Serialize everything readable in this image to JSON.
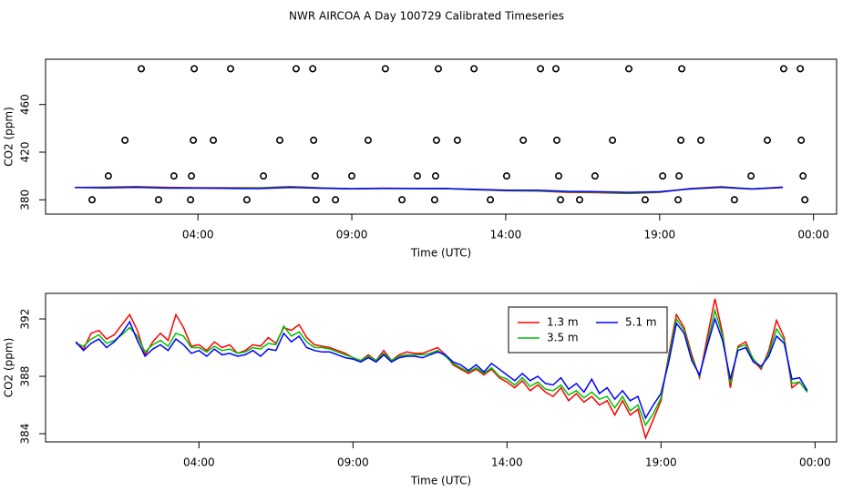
{
  "chart_data": [
    {
      "type": "scatter",
      "title": "NWR AIRCOA A  Day 100729  Calibrated Timeseries",
      "xlabel": "Time (UTC)",
      "ylabel": "CO2 (ppm)",
      "xlim": [
        -0.95,
        24.75
      ],
      "ylim": [
        368,
        498
      ],
      "xticks": [
        {
          "value": 4,
          "label": "04:00"
        },
        {
          "value": 9,
          "label": "09:00"
        },
        {
          "value": 14,
          "label": "14:00"
        },
        {
          "value": 19,
          "label": "19:00"
        },
        {
          "value": 24,
          "label": "00:00"
        }
      ],
      "yticks": [
        380,
        420,
        460
      ],
      "points": {
        "x": [
          0.56,
          2.72,
          3.76,
          5.59,
          7.84,
          8.47,
          10.63,
          11.69,
          13.5,
          15.78,
          16.4,
          18.53,
          19.6,
          21.43,
          23.72,
          1.09,
          3.22,
          3.79,
          6.13,
          7.81,
          9.0,
          11.13,
          11.72,
          14.03,
          15.72,
          16.9,
          19.1,
          19.63,
          21.97,
          23.66,
          1.63,
          4.5,
          3.85,
          6.66,
          7.76,
          9.53,
          11.75,
          12.43,
          14.57,
          15.66,
          17.47,
          19.69,
          20.34,
          22.5,
          23.6,
          2.16,
          3.88,
          5.06,
          7.19,
          7.73,
          10.09,
          11.81,
          12.97,
          15.13,
          15.63,
          18.0,
          19.72,
          23.03,
          23.57
        ],
        "y": [
          380,
          380,
          380,
          380,
          380,
          380,
          380,
          380,
          380,
          380,
          380,
          380,
          380,
          380,
          380,
          400,
          400,
          400,
          400,
          400,
          400,
          400,
          400,
          400,
          400,
          400,
          400,
          400,
          400,
          400,
          430,
          430,
          430,
          430,
          430,
          430,
          430,
          430,
          430,
          430,
          430,
          430,
          430,
          430,
          430,
          490,
          490,
          490,
          490,
          490,
          490,
          490,
          490,
          490,
          490,
          490,
          490,
          490,
          490
        ]
      },
      "x": [
        0,
        1,
        2,
        3,
        4,
        5,
        6,
        7,
        8,
        9,
        10,
        11,
        12,
        13,
        14,
        15,
        16,
        17,
        18,
        19,
        20,
        21,
        22,
        23
      ],
      "series": [
        {
          "color": "#ff0000",
          "values": [
            390.4,
            390.6,
            391.2,
            390.5,
            390.2,
            390.2,
            390.1,
            391.2,
            390.1,
            389.3,
            389.8,
            389.6,
            389.5,
            388.5,
            387.6,
            387.4,
            386.3,
            386.0,
            385.3,
            386.3,
            389.5,
            391.0,
            389.1,
            390.7
          ]
        },
        {
          "color": "#00c000",
          "values": [
            390.3,
            390.3,
            390.8,
            390.1,
            390.0,
            389.9,
            389.9,
            390.8,
            390.0,
            389.3,
            389.6,
            389.5,
            389.4,
            388.6,
            387.8,
            387.6,
            386.7,
            386.4,
            385.6,
            386.5,
            389.3,
            390.8,
            389.2,
            390.5
          ]
        },
        {
          "color": "#0000ff",
          "values": [
            390.4,
            390.0,
            390.5,
            389.8,
            389.8,
            389.6,
            389.4,
            390.4,
            389.7,
            389.2,
            389.5,
            389.4,
            389.5,
            388.8,
            388.1,
            388.0,
            387.1,
            386.8,
            386.3,
            386.8,
            389.1,
            390.5,
            389.0,
            390.3
          ]
        }
      ]
    },
    {
      "type": "line",
      "xlabel": "Time (UTC)",
      "ylabel": "CO2 (ppm)",
      "xlim": [
        -0.98,
        24.7
      ],
      "ylim": [
        383.43,
        393.78
      ],
      "xticks": [
        {
          "value": 4,
          "label": "04:00"
        },
        {
          "value": 9,
          "label": "09:00"
        },
        {
          "value": 14,
          "label": "14:00"
        },
        {
          "value": 19,
          "label": "19:00"
        },
        {
          "value": 24,
          "label": "00:00"
        }
      ],
      "yticks": [
        384,
        388,
        392
      ],
      "legend": "top",
      "x": [
        0,
        0.25,
        0.5,
        0.75,
        1,
        1.25,
        1.5,
        1.75,
        2,
        2.25,
        2.5,
        2.75,
        3,
        3.25,
        3.5,
        3.75,
        4,
        4.25,
        4.5,
        4.75,
        5,
        5.25,
        5.5,
        5.75,
        6,
        6.25,
        6.5,
        6.75,
        7,
        7.25,
        7.5,
        7.75,
        8,
        8.25,
        8.5,
        8.75,
        9,
        9.25,
        9.5,
        9.75,
        10,
        10.25,
        10.5,
        10.75,
        11,
        11.25,
        11.5,
        11.75,
        12,
        12.25,
        12.5,
        12.75,
        13,
        13.25,
        13.5,
        13.75,
        14,
        14.25,
        14.5,
        14.75,
        15,
        15.25,
        15.5,
        15.75,
        16,
        16.25,
        16.5,
        16.75,
        17,
        17.25,
        17.5,
        17.75,
        18,
        18.25,
        18.5,
        18.75,
        19,
        19.25,
        19.5,
        19.75,
        20,
        20.25,
        20.5,
        20.75,
        21,
        21.25,
        21.5,
        21.75,
        22,
        22.25,
        22.5,
        22.75,
        23,
        23.25,
        23.5,
        23.75
      ],
      "series": [
        {
          "name": "1.3 m",
          "color": "#ff0000",
          "values": [
            390.4,
            389.9,
            391.0,
            391.2,
            390.6,
            390.9,
            391.6,
            392.3,
            391.2,
            389.5,
            390.4,
            391.0,
            390.5,
            392.3,
            391.4,
            390.1,
            390.2,
            389.8,
            390.4,
            390.0,
            390.2,
            389.6,
            389.8,
            390.2,
            390.1,
            390.7,
            390.3,
            391.4,
            391.2,
            391.6,
            390.7,
            390.2,
            390.1,
            390.0,
            389.8,
            389.6,
            389.3,
            389.1,
            389.5,
            389.1,
            389.8,
            389.1,
            389.5,
            389.7,
            389.6,
            389.6,
            389.8,
            390.0,
            389.5,
            388.8,
            388.5,
            388.2,
            388.5,
            388.1,
            388.5,
            387.9,
            387.6,
            387.2,
            387.7,
            387.0,
            387.4,
            386.9,
            386.6,
            387.2,
            386.3,
            386.8,
            386.2,
            386.6,
            386.0,
            386.3,
            385.3,
            386.3,
            385.3,
            385.7,
            383.7,
            385.0,
            386.3,
            389.5,
            392.3,
            391.4,
            389.5,
            387.9,
            390.7,
            393.4,
            391.0,
            387.2,
            390.1,
            390.4,
            389.1,
            388.5,
            389.8,
            391.9,
            390.7,
            387.2,
            387.6,
            386.9
          ]
        },
        {
          "name": "3.5 m",
          "color": "#00c000",
          "values": [
            390.3,
            390.1,
            390.6,
            390.9,
            390.3,
            390.5,
            390.9,
            391.4,
            390.8,
            389.7,
            390.2,
            390.5,
            390.1,
            391.0,
            390.8,
            390.0,
            390.0,
            389.7,
            390.1,
            389.8,
            389.9,
            389.6,
            389.7,
            390.0,
            389.9,
            390.3,
            390.2,
            391.5,
            390.8,
            391.1,
            390.4,
            390.0,
            390.0,
            389.9,
            389.7,
            389.5,
            389.3,
            389.1,
            389.4,
            389.1,
            389.6,
            389.1,
            389.4,
            389.5,
            389.5,
            389.5,
            389.6,
            389.8,
            389.4,
            388.9,
            388.6,
            388.3,
            388.6,
            388.2,
            388.6,
            388.0,
            387.8,
            387.4,
            387.9,
            387.3,
            387.6,
            387.1,
            387.0,
            387.4,
            386.7,
            387.0,
            386.5,
            386.9,
            386.4,
            386.6,
            385.8,
            386.6,
            385.6,
            386.0,
            384.6,
            385.4,
            386.5,
            389.3,
            392.0,
            391.2,
            389.3,
            388.0,
            390.3,
            392.6,
            390.8,
            387.5,
            390.0,
            390.2,
            389.2,
            388.6,
            389.6,
            391.3,
            390.5,
            387.5,
            387.6,
            386.9
          ]
        },
        {
          "name": "5.1 m",
          "color": "#0000ff",
          "values": [
            390.4,
            389.8,
            390.3,
            390.6,
            390.0,
            390.4,
            391.0,
            391.8,
            390.5,
            389.4,
            389.9,
            390.2,
            389.8,
            390.6,
            390.2,
            389.6,
            389.8,
            389.4,
            389.9,
            389.5,
            389.6,
            389.4,
            389.5,
            389.8,
            389.4,
            389.9,
            389.8,
            391.0,
            390.4,
            390.8,
            390.0,
            389.8,
            389.7,
            389.7,
            389.5,
            389.3,
            389.2,
            389.0,
            389.3,
            389.0,
            389.5,
            389.0,
            389.3,
            389.4,
            389.4,
            389.3,
            389.5,
            389.7,
            389.5,
            389.0,
            388.8,
            388.4,
            388.8,
            388.3,
            388.9,
            388.5,
            388.1,
            387.7,
            388.2,
            387.7,
            388.0,
            387.5,
            387.4,
            387.9,
            387.1,
            387.5,
            386.9,
            387.8,
            386.8,
            387.2,
            386.4,
            387.0,
            386.3,
            386.6,
            385.1,
            386.0,
            386.8,
            389.0,
            391.7,
            391.0,
            389.1,
            388.1,
            390.1,
            392.0,
            390.5,
            387.8,
            389.8,
            390.0,
            389.0,
            388.7,
            389.4,
            390.8,
            390.3,
            387.8,
            387.9,
            387.0
          ]
        }
      ]
    }
  ]
}
